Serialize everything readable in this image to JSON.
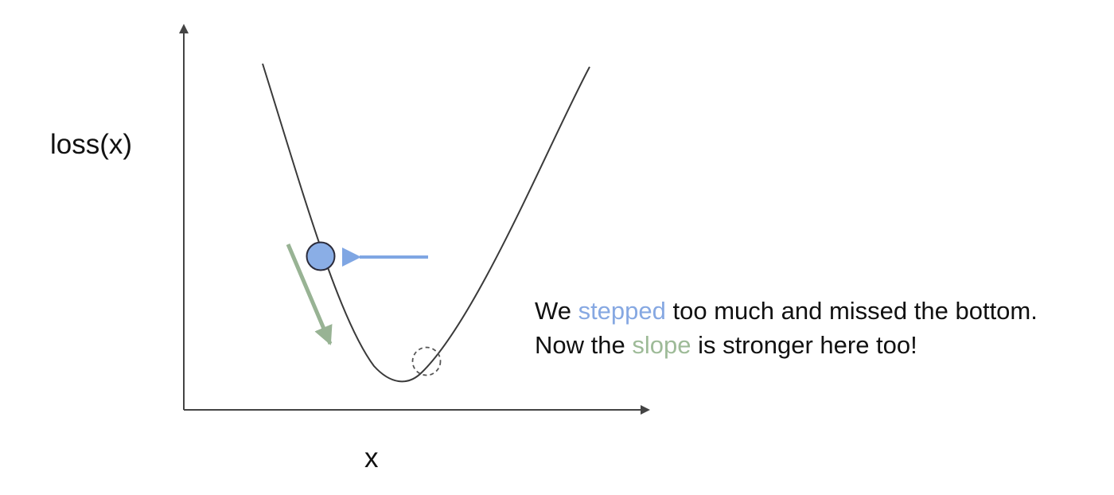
{
  "axes": {
    "y_label": "loss(x)",
    "x_label": "x"
  },
  "caption": {
    "line1": {
      "prefix": "We ",
      "highlight": "stepped",
      "suffix": " too much and missed the bottom."
    },
    "line2": {
      "prefix": "Now the ",
      "highlight": "slope",
      "suffix": " is stronger here too!"
    }
  },
  "colors": {
    "axis": "#444444",
    "curve": "#3a3a3a",
    "ball_fill": "#8aaee6",
    "ball_stroke": "#2b2b3a",
    "step_arrow": "#7fa6e3",
    "slope_arrow": "#98b394",
    "previous_position_marker": "#555555",
    "step_text": "#86a8e2",
    "slope_text": "#9ebb98"
  },
  "icons": {
    "ball": "current-position-circle",
    "previous": "dashed-circle-previous-position",
    "step": "left-arrow",
    "slope": "down-slope-arrow"
  }
}
